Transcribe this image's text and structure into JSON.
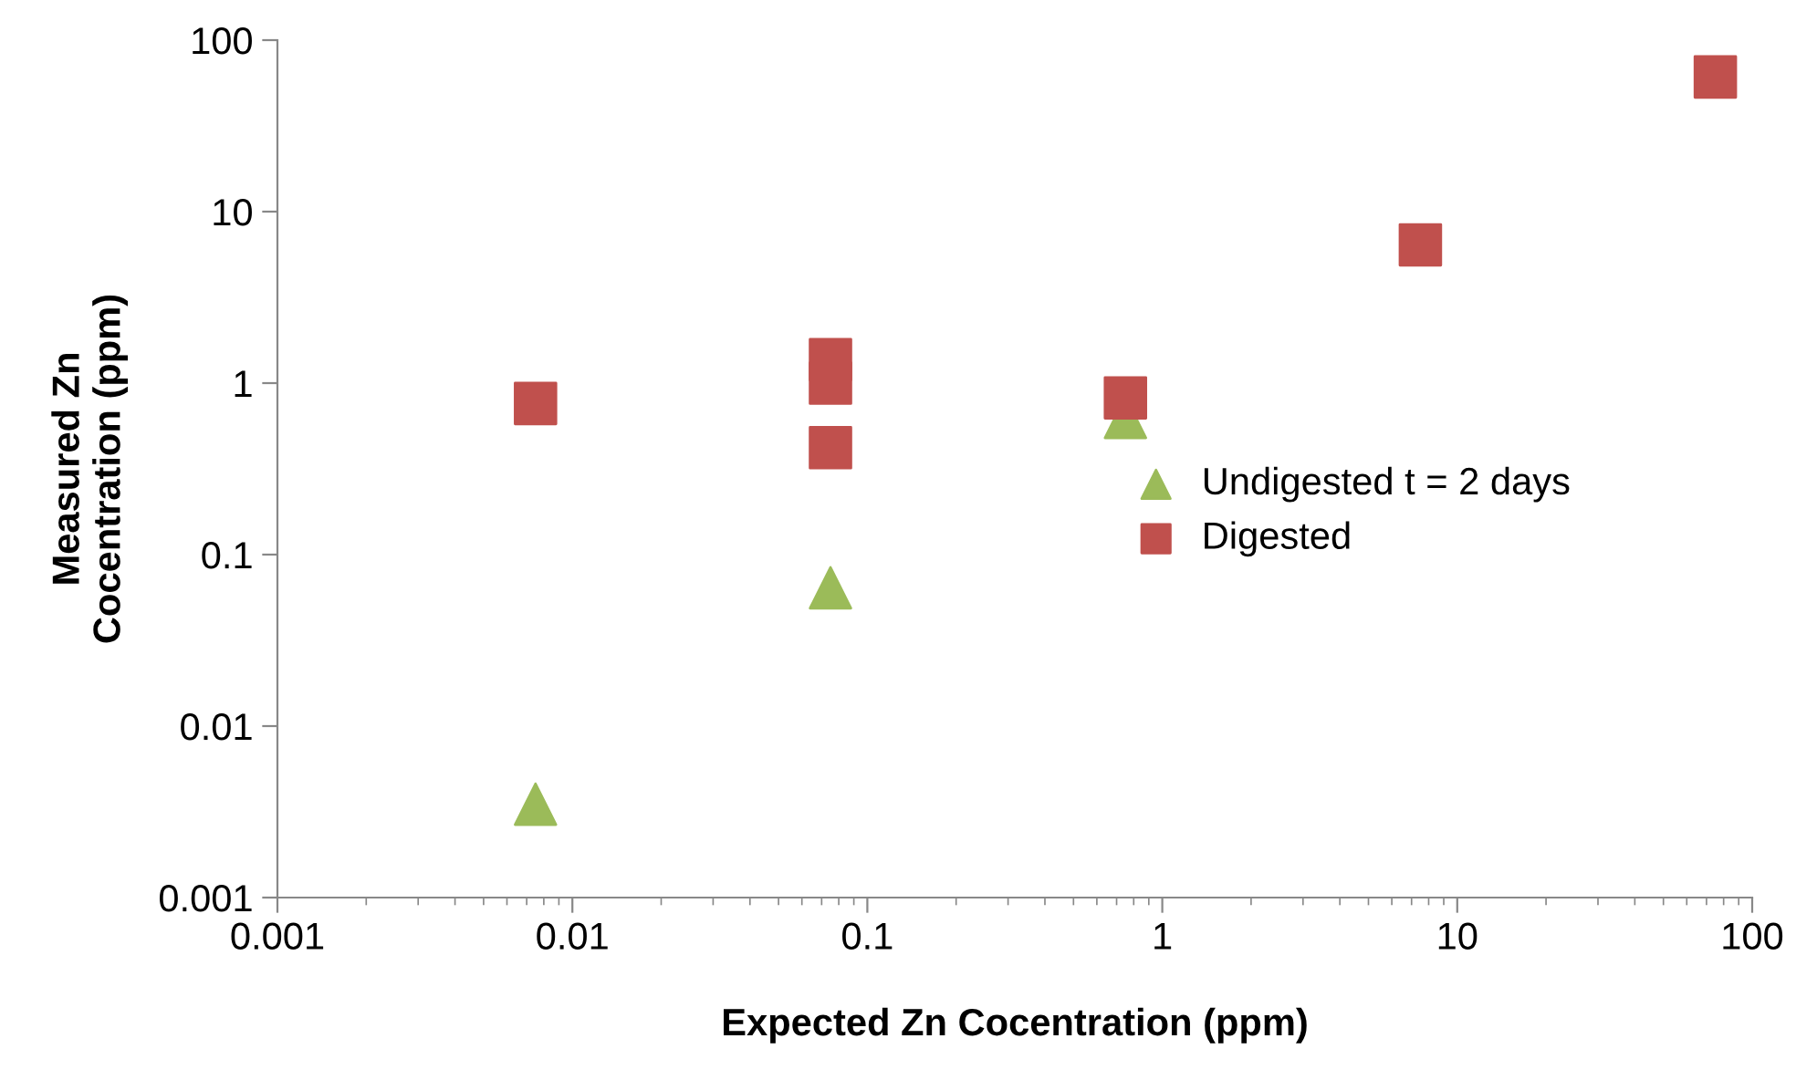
{
  "chart_data": {
    "type": "scatter",
    "xlabel": "Expected Zn Cocentration (ppm)",
    "ylabel": "Measured Zn\nCocentration (ppm)",
    "log": "xy",
    "xlim": [
      0.001,
      100
    ],
    "xticks": [
      0.001,
      0.01,
      0.1,
      1,
      10,
      100
    ],
    "ylim": [
      0.001,
      100
    ],
    "yticks": [
      0.001,
      0.01,
      0.1,
      1,
      10,
      100
    ],
    "grid": false,
    "legend": "right",
    "series": [
      {
        "name": "Undigested t = 2 days",
        "color": "#9bbb59",
        "marker": "triangle",
        "x": [
          0.0075,
          0.075,
          0.75
        ],
        "values": [
          0.0035,
          0.064,
          0.63
        ]
      },
      {
        "name": "Digested",
        "color": "#c0504d",
        "marker": "square",
        "x": [
          0.0075,
          0.075,
          0.075,
          0.075,
          0.75,
          7.5,
          75
        ],
        "values": [
          0.76,
          1.37,
          1.0,
          0.42,
          0.82,
          6.4,
          61
        ]
      }
    ]
  }
}
